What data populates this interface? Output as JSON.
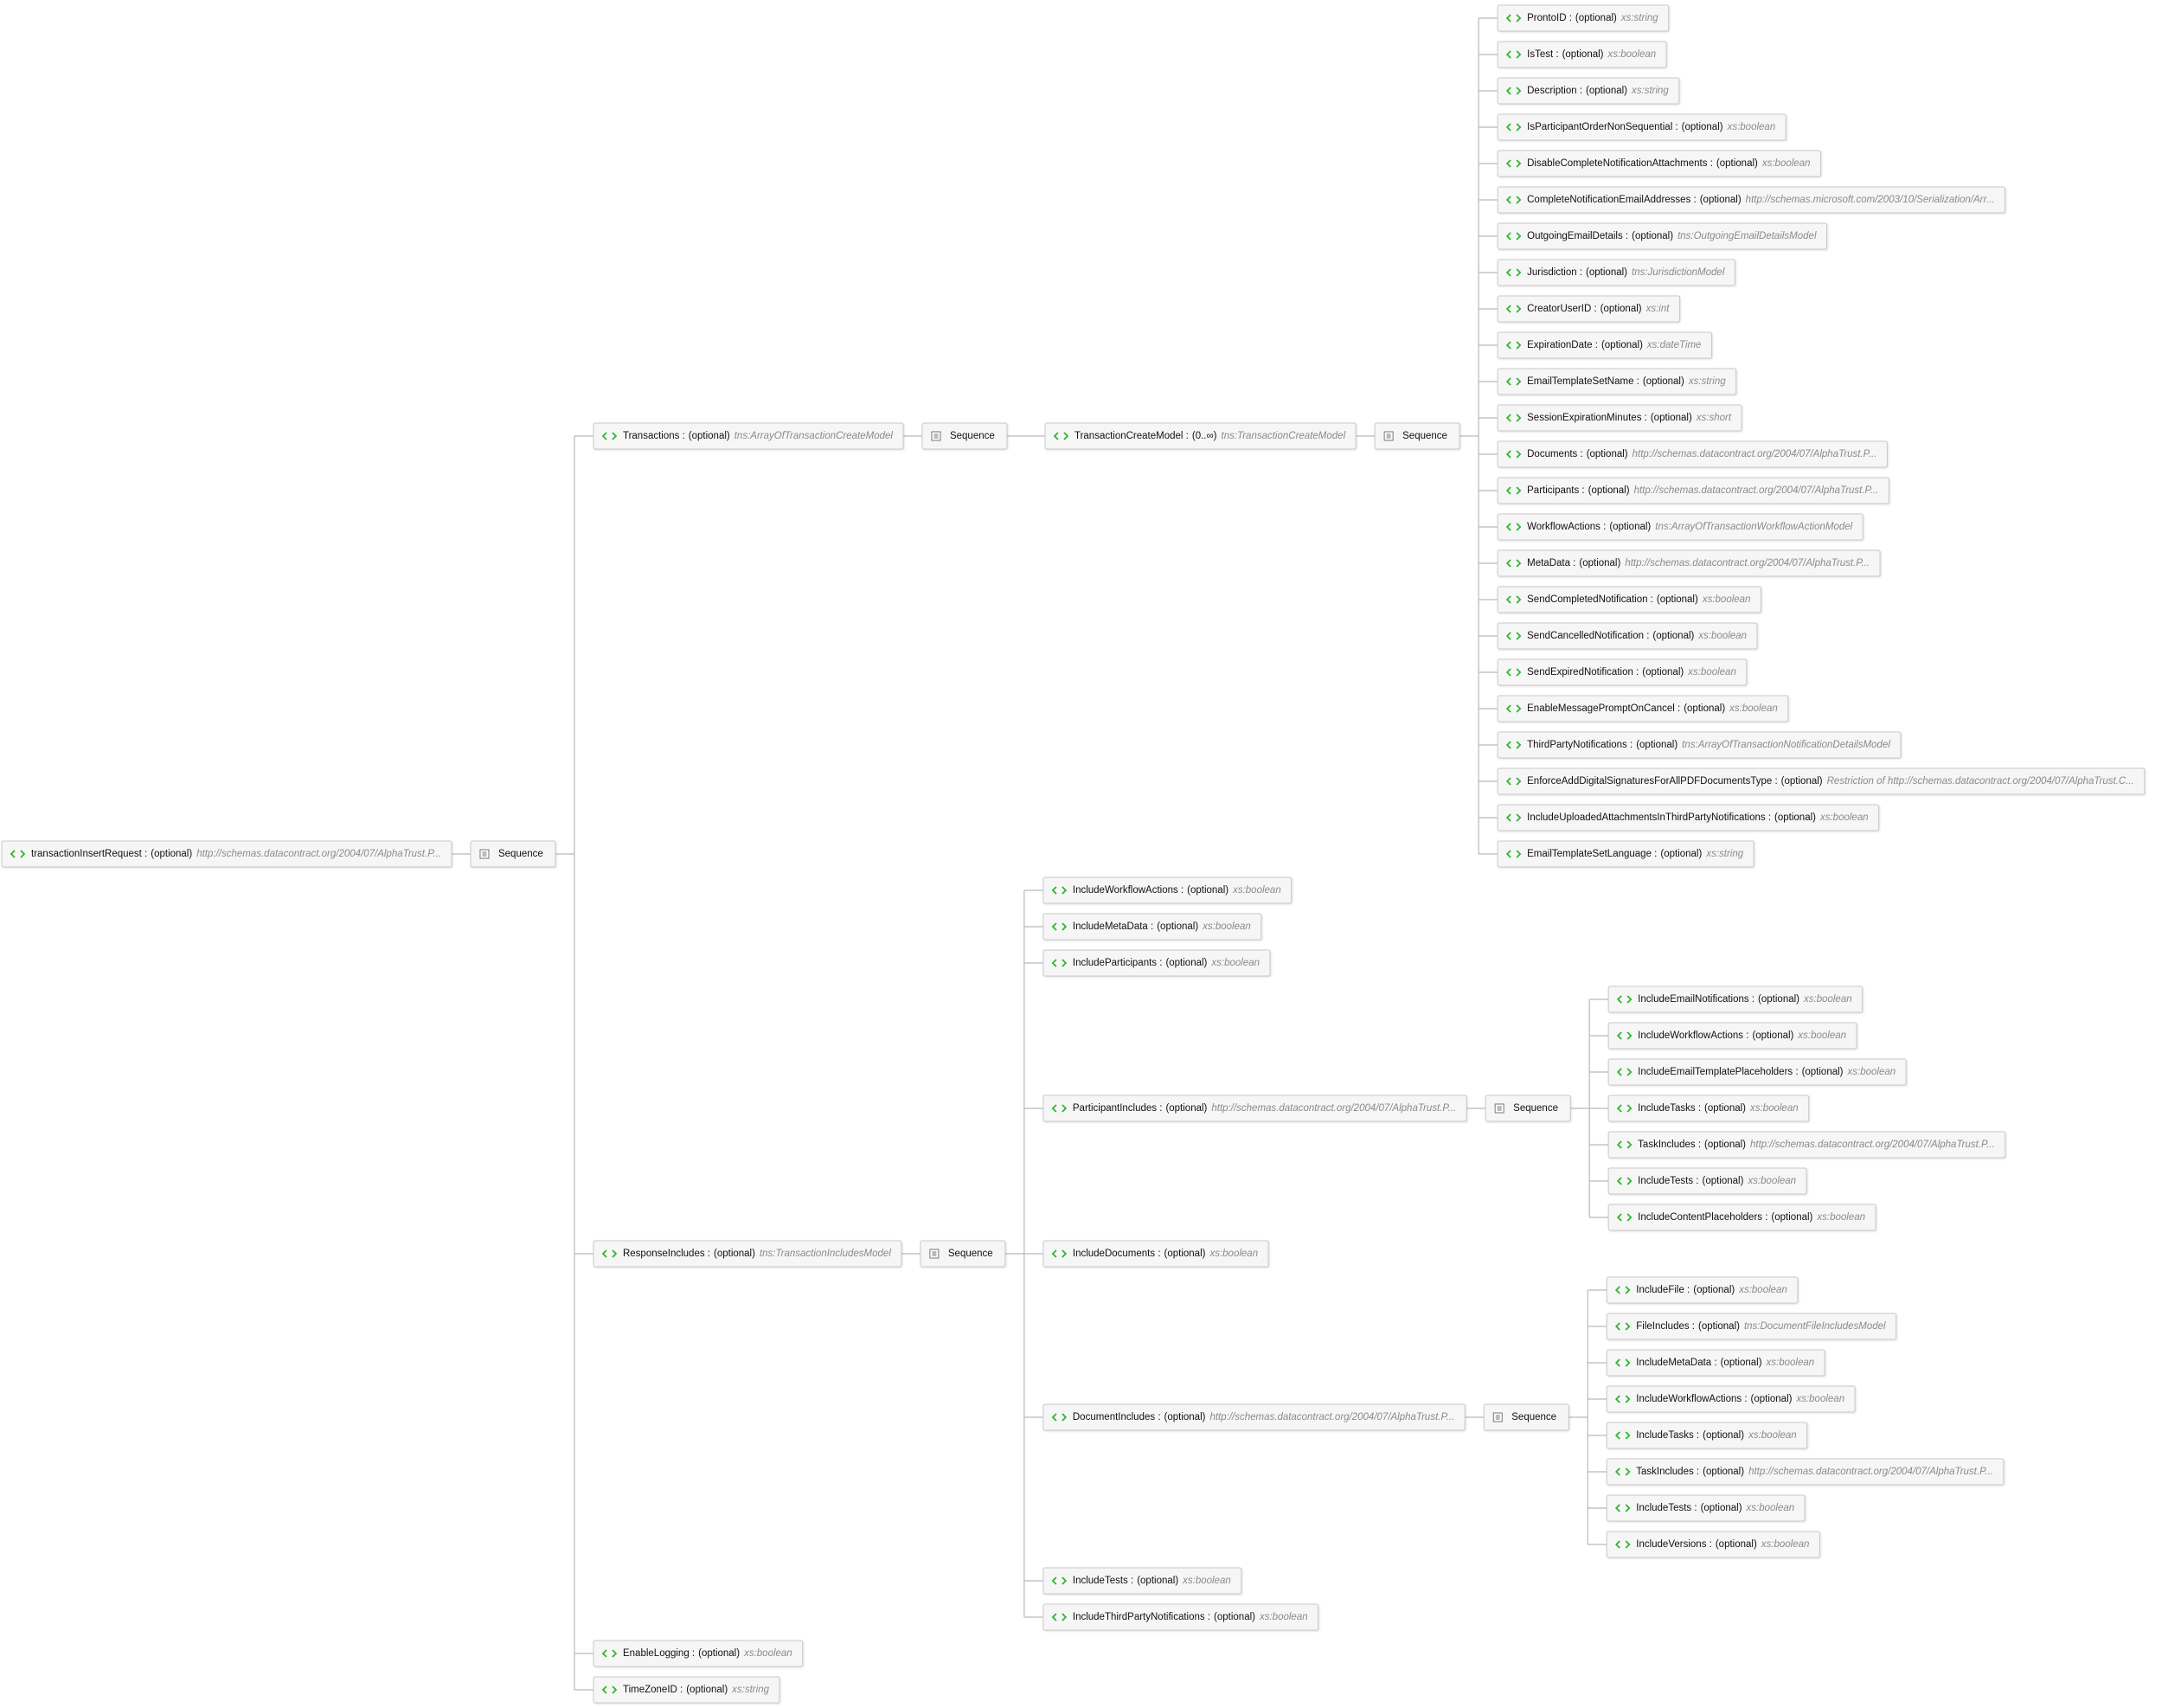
{
  "tree": {
    "name": "transactionInsertRequest :",
    "occurs": "(optional)",
    "type": "http://schemas.datacontract.org/2004/07/AlphaTrust.P...",
    "sequence": {
      "label": "Sequence",
      "children": [
        {
          "name": "Transactions :",
          "occurs": "(optional)",
          "type": "tns:ArrayOfTransactionCreateModel",
          "sequence": {
            "label": "Sequence",
            "children": [
              {
                "name": "TransactionCreateModel :",
                "occurs": "(0..∞)",
                "type": "tns:TransactionCreateModel",
                "sequence": {
                  "label": "Sequence",
                  "children": [
                    {
                      "name": "ProntoID :",
                      "occurs": "(optional)",
                      "type": "xs:string"
                    },
                    {
                      "name": "IsTest :",
                      "occurs": "(optional)",
                      "type": "xs:boolean"
                    },
                    {
                      "name": "Description :",
                      "occurs": "(optional)",
                      "type": "xs:string"
                    },
                    {
                      "name": "IsParticipantOrderNonSequential :",
                      "occurs": "(optional)",
                      "type": "xs:boolean"
                    },
                    {
                      "name": "DisableCompleteNotificationAttachments :",
                      "occurs": "(optional)",
                      "type": "xs:boolean"
                    },
                    {
                      "name": "CompleteNotificationEmailAddresses :",
                      "occurs": "(optional)",
                      "type": "http://schemas.microsoft.com/2003/10/Serialization/Arr..."
                    },
                    {
                      "name": "OutgoingEmailDetails :",
                      "occurs": "(optional)",
                      "type": "tns:OutgoingEmailDetailsModel"
                    },
                    {
                      "name": "Jurisdiction :",
                      "occurs": "(optional)",
                      "type": "tns:JurisdictionModel"
                    },
                    {
                      "name": "CreatorUserID :",
                      "occurs": "(optional)",
                      "type": "xs:int"
                    },
                    {
                      "name": "ExpirationDate :",
                      "occurs": "(optional)",
                      "type": "xs:dateTime"
                    },
                    {
                      "name": "EmailTemplateSetName :",
                      "occurs": "(optional)",
                      "type": "xs:string"
                    },
                    {
                      "name": "SessionExpirationMinutes :",
                      "occurs": "(optional)",
                      "type": "xs:short"
                    },
                    {
                      "name": "Documents :",
                      "occurs": "(optional)",
                      "type": "http://schemas.datacontract.org/2004/07/AlphaTrust.P..."
                    },
                    {
                      "name": "Participants :",
                      "occurs": "(optional)",
                      "type": "http://schemas.datacontract.org/2004/07/AlphaTrust.P..."
                    },
                    {
                      "name": "WorkflowActions :",
                      "occurs": "(optional)",
                      "type": "tns:ArrayOfTransactionWorkflowActionModel"
                    },
                    {
                      "name": "MetaData :",
                      "occurs": "(optional)",
                      "type": "http://schemas.datacontract.org/2004/07/AlphaTrust.P..."
                    },
                    {
                      "name": "SendCompletedNotification :",
                      "occurs": "(optional)",
                      "type": "xs:boolean"
                    },
                    {
                      "name": "SendCancelledNotification :",
                      "occurs": "(optional)",
                      "type": "xs:boolean"
                    },
                    {
                      "name": "SendExpiredNotification :",
                      "occurs": "(optional)",
                      "type": "xs:boolean"
                    },
                    {
                      "name": "EnableMessagePromptOnCancel :",
                      "occurs": "(optional)",
                      "type": "xs:boolean"
                    },
                    {
                      "name": "ThirdPartyNotifications :",
                      "occurs": "(optional)",
                      "type": "tns:ArrayOfTransactionNotificationDetailsModel"
                    },
                    {
                      "name": "EnforceAddDigitalSignaturesForAllPDFDocumentsType :",
                      "occurs": "(optional)",
                      "type": "Restriction of http://schemas.datacontract.org/2004/07/AlphaTrust.C..."
                    },
                    {
                      "name": "IncludeUploadedAttachmentsInThirdPartyNotifications :",
                      "occurs": "(optional)",
                      "type": "xs:boolean"
                    },
                    {
                      "name": "EmailTemplateSetLanguage :",
                      "occurs": "(optional)",
                      "type": "xs:string"
                    }
                  ]
                }
              }
            ]
          }
        },
        {
          "name": "ResponseIncludes :",
          "occurs": "(optional)",
          "type": "tns:TransactionIncludesModel",
          "sequence": {
            "label": "Sequence",
            "children": [
              {
                "name": "IncludeWorkflowActions :",
                "occurs": "(optional)",
                "type": "xs:boolean"
              },
              {
                "name": "IncludeMetaData :",
                "occurs": "(optional)",
                "type": "xs:boolean"
              },
              {
                "name": "IncludeParticipants :",
                "occurs": "(optional)",
                "type": "xs:boolean"
              },
              {
                "name": "ParticipantIncludes :",
                "occurs": "(optional)",
                "type": "http://schemas.datacontract.org/2004/07/AlphaTrust.P...",
                "sequence": {
                  "label": "Sequence",
                  "children": [
                    {
                      "name": "IncludeEmailNotifications :",
                      "occurs": "(optional)",
                      "type": "xs:boolean"
                    },
                    {
                      "name": "IncludeWorkflowActions :",
                      "occurs": "(optional)",
                      "type": "xs:boolean"
                    },
                    {
                      "name": "IncludeEmailTemplatePlaceholders :",
                      "occurs": "(optional)",
                      "type": "xs:boolean"
                    },
                    {
                      "name": "IncludeTasks :",
                      "occurs": "(optional)",
                      "type": "xs:boolean"
                    },
                    {
                      "name": "TaskIncludes :",
                      "occurs": "(optional)",
                      "type": "http://schemas.datacontract.org/2004/07/AlphaTrust.P..."
                    },
                    {
                      "name": "IncludeTests :",
                      "occurs": "(optional)",
                      "type": "xs:boolean"
                    },
                    {
                      "name": "IncludeContentPlaceholders :",
                      "occurs": "(optional)",
                      "type": "xs:boolean"
                    }
                  ]
                }
              },
              {
                "name": "IncludeDocuments :",
                "occurs": "(optional)",
                "type": "xs:boolean"
              },
              {
                "name": "DocumentIncludes :",
                "occurs": "(optional)",
                "type": "http://schemas.datacontract.org/2004/07/AlphaTrust.P...",
                "sequence": {
                  "label": "Sequence",
                  "children": [
                    {
                      "name": "IncludeFile :",
                      "occurs": "(optional)",
                      "type": "xs:boolean"
                    },
                    {
                      "name": "FileIncludes :",
                      "occurs": "(optional)",
                      "type": "tns:DocumentFileIncludesModel"
                    },
                    {
                      "name": "IncludeMetaData :",
                      "occurs": "(optional)",
                      "type": "xs:boolean"
                    },
                    {
                      "name": "IncludeWorkflowActions :",
                      "occurs": "(optional)",
                      "type": "xs:boolean"
                    },
                    {
                      "name": "IncludeTasks :",
                      "occurs": "(optional)",
                      "type": "xs:boolean"
                    },
                    {
                      "name": "TaskIncludes :",
                      "occurs": "(optional)",
                      "type": "http://schemas.datacontract.org/2004/07/AlphaTrust.P..."
                    },
                    {
                      "name": "IncludeTests :",
                      "occurs": "(optional)",
                      "type": "xs:boolean"
                    },
                    {
                      "name": "IncludeVersions :",
                      "occurs": "(optional)",
                      "type": "xs:boolean"
                    }
                  ]
                }
              },
              {
                "name": "IncludeTests :",
                "occurs": "(optional)",
                "type": "xs:boolean"
              },
              {
                "name": "IncludeThirdPartyNotifications :",
                "occurs": "(optional)",
                "type": "xs:boolean"
              }
            ]
          }
        },
        {
          "name": "EnableLogging :",
          "occurs": "(optional)",
          "type": "xs:boolean"
        },
        {
          "name": "TimeZoneID :",
          "occurs": "(optional)",
          "type": "xs:string"
        }
      ]
    }
  }
}
